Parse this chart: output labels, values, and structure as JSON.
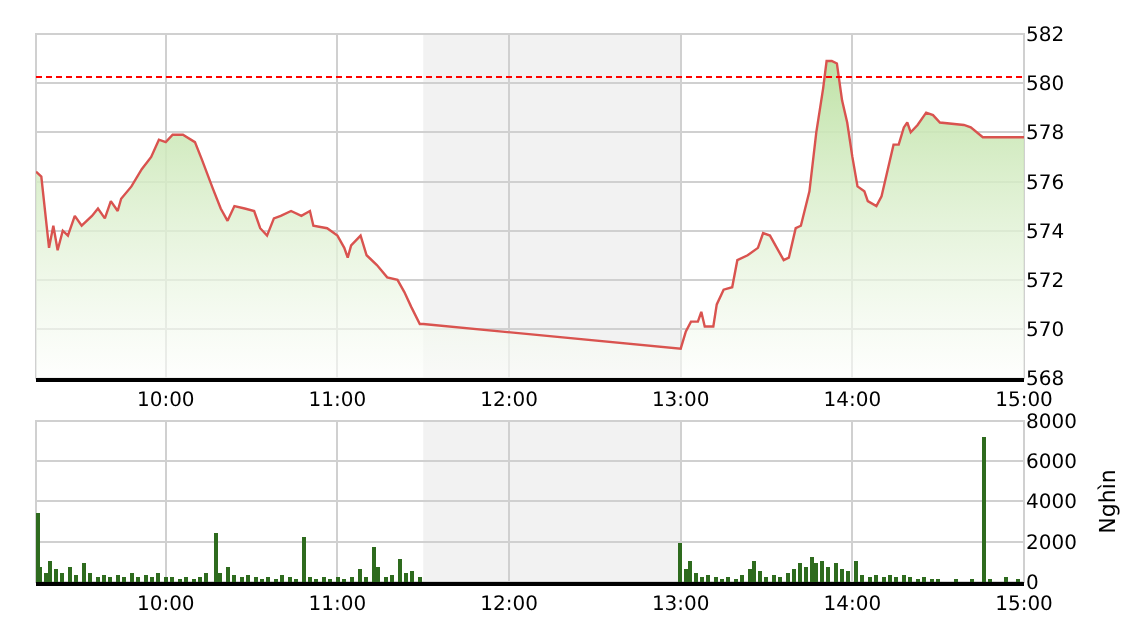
{
  "chart_data": [
    {
      "type": "area",
      "x": [
        9.244,
        9.275,
        9.32,
        9.345,
        9.37,
        9.4,
        9.43,
        9.47,
        9.51,
        9.57,
        9.605,
        9.645,
        9.68,
        9.72,
        9.74,
        9.8,
        9.86,
        9.915,
        9.96,
        10.0,
        10.04,
        10.1,
        10.17,
        10.21,
        10.275,
        10.32,
        10.36,
        10.4,
        10.46,
        10.515,
        10.55,
        10.59,
        10.63,
        10.67,
        10.73,
        10.79,
        10.84,
        10.86,
        10.94,
        11.0,
        11.04,
        11.06,
        11.08,
        11.135,
        11.17,
        11.23,
        11.29,
        11.35,
        11.39,
        11.43,
        11.48,
        11.5,
        13.0,
        13.03,
        13.06,
        13.1,
        13.12,
        13.14,
        13.19,
        13.21,
        13.25,
        13.3,
        13.33,
        13.39,
        13.45,
        13.48,
        13.52,
        13.56,
        13.6,
        13.63,
        13.67,
        13.7,
        13.75,
        13.79,
        13.83,
        13.85,
        13.88,
        13.91,
        13.94,
        13.97,
        14.0,
        14.03,
        14.07,
        14.09,
        14.14,
        14.17,
        14.21,
        14.24,
        14.27,
        14.3,
        14.32,
        14.34,
        14.38,
        14.43,
        14.47,
        14.51,
        14.65,
        14.69,
        14.76,
        15.0
      ],
      "series": [
        {
          "color": "#d9534f",
          "values": [
            576.4,
            576.2,
            573.3,
            574.2,
            573.2,
            574.0,
            573.8,
            574.6,
            574.2,
            574.6,
            574.9,
            574.5,
            575.2,
            574.8,
            575.3,
            575.8,
            576.5,
            577.0,
            577.7,
            577.6,
            577.9,
            577.9,
            577.6,
            576.9,
            575.7,
            574.9,
            574.4,
            575.0,
            574.9,
            574.8,
            574.1,
            573.8,
            574.5,
            574.6,
            574.8,
            574.6,
            574.8,
            574.2,
            574.1,
            573.8,
            573.3,
            572.9,
            573.4,
            573.8,
            573.0,
            572.6,
            572.1,
            572.0,
            571.5,
            570.9,
            570.2,
            570.2,
            569.2,
            569.9,
            570.3,
            570.3,
            570.7,
            570.1,
            570.1,
            571.0,
            571.6,
            571.7,
            572.8,
            573.0,
            573.3,
            573.9,
            573.8,
            573.3,
            572.8,
            572.9,
            574.1,
            574.2,
            575.6,
            578.0,
            579.8,
            580.9,
            580.9,
            580.8,
            579.3,
            578.4,
            577.0,
            575.8,
            575.6,
            575.2,
            575.0,
            575.4,
            576.6,
            577.5,
            577.5,
            578.2,
            578.4,
            578.0,
            578.3,
            578.8,
            578.7,
            578.4,
            578.3,
            578.2,
            577.8,
            577.8
          ]
        }
      ],
      "xlim": [
        9.244,
        15.0
      ],
      "xticks": [
        {
          "value": 10,
          "label": "10:00"
        },
        {
          "value": 11,
          "label": "11:00"
        },
        {
          "value": 12,
          "label": "12:00"
        },
        {
          "value": 13,
          "label": "13:00"
        },
        {
          "value": 14,
          "label": "14:00"
        },
        {
          "value": 15,
          "label": "15:00"
        }
      ],
      "ylim": [
        568,
        582
      ],
      "yticks": [
        568,
        570,
        572,
        574,
        576,
        578,
        580,
        582
      ],
      "ref_lines": [
        {
          "axis": "y",
          "value": 580.25,
          "color": "#ff0000",
          "line_style": "dashed"
        }
      ],
      "bands": [
        {
          "axis": "x",
          "from": 11.5,
          "to": 13.0,
          "color": "#f2f2f2"
        }
      ],
      "grid": true
    },
    {
      "type": "bar",
      "ylabel": "Nghìn",
      "x": [
        9.25,
        9.27,
        9.3,
        9.33,
        9.36,
        9.4,
        9.44,
        9.48,
        9.52,
        9.56,
        9.6,
        9.64,
        9.68,
        9.72,
        9.76,
        9.8,
        9.84,
        9.88,
        9.92,
        9.96,
        10.0,
        10.04,
        10.08,
        10.12,
        10.16,
        10.2,
        10.24,
        10.29,
        10.32,
        10.36,
        10.4,
        10.44,
        10.48,
        10.52,
        10.56,
        10.6,
        10.64,
        10.68,
        10.72,
        10.76,
        10.81,
        10.84,
        10.88,
        10.92,
        10.96,
        11.0,
        11.04,
        11.08,
        11.13,
        11.17,
        11.21,
        11.24,
        11.28,
        11.32,
        11.37,
        11.4,
        11.44,
        11.48,
        13.0,
        13.03,
        13.06,
        13.09,
        13.12,
        13.16,
        13.2,
        13.24,
        13.28,
        13.32,
        13.36,
        13.4,
        13.43,
        13.46,
        13.5,
        13.54,
        13.58,
        13.62,
        13.66,
        13.7,
        13.73,
        13.76,
        13.79,
        13.82,
        13.86,
        13.9,
        13.94,
        13.98,
        14.02,
        14.06,
        14.1,
        14.14,
        14.18,
        14.22,
        14.26,
        14.3,
        14.34,
        14.38,
        14.42,
        14.46,
        14.5,
        14.6,
        14.7,
        14.77,
        14.8,
        14.9,
        14.96
      ],
      "series": [
        {
          "color": "#2e6b1e",
          "values": [
            3400,
            800,
            500,
            1000,
            700,
            500,
            800,
            400,
            900,
            500,
            300,
            400,
            300,
            400,
            300,
            500,
            300,
            400,
            300,
            500,
            300,
            300,
            200,
            300,
            200,
            300,
            500,
            2400,
            500,
            800,
            400,
            300,
            400,
            300,
            200,
            300,
            200,
            400,
            300,
            200,
            2200,
            300,
            200,
            300,
            200,
            300,
            200,
            300,
            700,
            300,
            1700,
            800,
            300,
            400,
            1100,
            500,
            600,
            300,
            1900,
            700,
            1000,
            500,
            300,
            400,
            300,
            200,
            300,
            200,
            400,
            700,
            1000,
            600,
            300,
            400,
            300,
            500,
            700,
            900,
            800,
            1200,
            900,
            1000,
            800,
            900,
            700,
            600,
            1000,
            400,
            300,
            400,
            300,
            400,
            300,
            400,
            300,
            200,
            300,
            200,
            100,
            100,
            100,
            7200,
            200,
            300,
            200
          ]
        }
      ],
      "xlim": [
        9.244,
        15.0
      ],
      "xticks": [
        {
          "value": 10,
          "label": "10:00"
        },
        {
          "value": 11,
          "label": "11:00"
        },
        {
          "value": 12,
          "label": "12:00"
        },
        {
          "value": 13,
          "label": "13:00"
        },
        {
          "value": 14,
          "label": "14:00"
        },
        {
          "value": 15,
          "label": "15:00"
        }
      ],
      "ylim": [
        0,
        8000
      ],
      "yticks": [
        0,
        2000,
        4000,
        6000,
        8000
      ],
      "bands": [
        {
          "axis": "x",
          "from": 11.5,
          "to": 13.0,
          "color": "#f2f2f2"
        }
      ],
      "grid": true
    }
  ]
}
